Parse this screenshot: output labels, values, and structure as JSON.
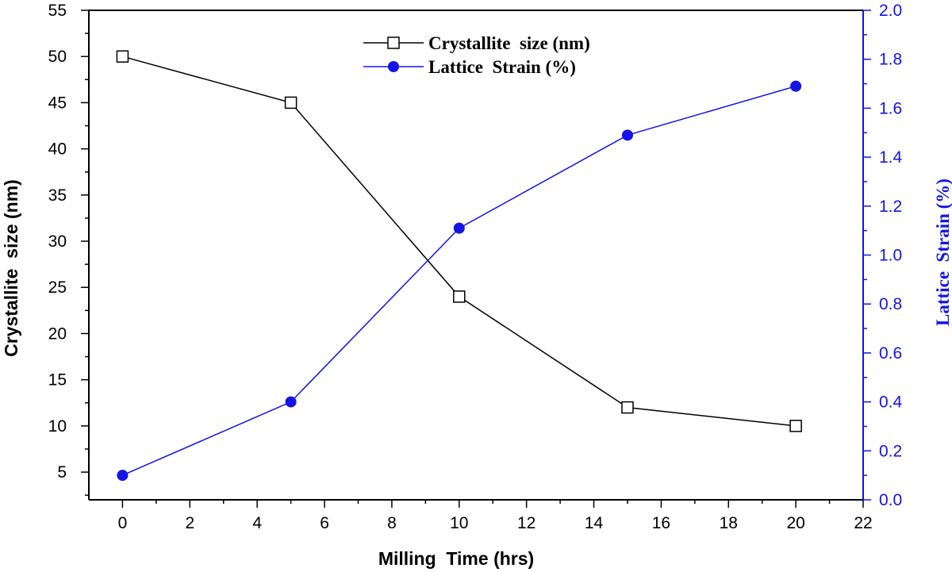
{
  "colors": {
    "series1": "#000000",
    "series2": "#1414e6",
    "right_axis": "#1414e6",
    "left_axis": "#000000"
  },
  "chart_data": {
    "type": "line",
    "title": "",
    "xlabel": "Milling  Time (hrs)",
    "ylabel_left": "Crystallite  size (nm)",
    "ylabel_right": "Lattice  Strain (%)",
    "xlim": [
      -1,
      22
    ],
    "ylim_left": [
      2,
      55
    ],
    "ylim_right": [
      0.0,
      2.0
    ],
    "x_ticks": [
      0,
      2,
      4,
      6,
      8,
      10,
      12,
      14,
      16,
      18,
      20,
      22
    ],
    "y_left_ticks": [
      5,
      10,
      15,
      20,
      25,
      30,
      35,
      40,
      45,
      50,
      55
    ],
    "y_right_ticks": [
      "0.0",
      "0.2",
      "0.4",
      "0.6",
      "0.8",
      "1.0",
      "1.2",
      "1.4",
      "1.6",
      "1.8",
      "2.0"
    ],
    "grid": false,
    "legend_position": "top-center",
    "series": [
      {
        "name": "Crystallite  size (nm)",
        "axis": "left",
        "marker": "open-square",
        "x": [
          0,
          5,
          10,
          15,
          20
        ],
        "values": [
          50,
          45,
          24,
          12,
          10
        ]
      },
      {
        "name": "Lattice  Strain (%)",
        "axis": "right",
        "marker": "filled-circle",
        "x": [
          0,
          5,
          10,
          15,
          20
        ],
        "values": [
          0.1,
          0.4,
          1.11,
          1.49,
          1.69
        ]
      }
    ]
  }
}
